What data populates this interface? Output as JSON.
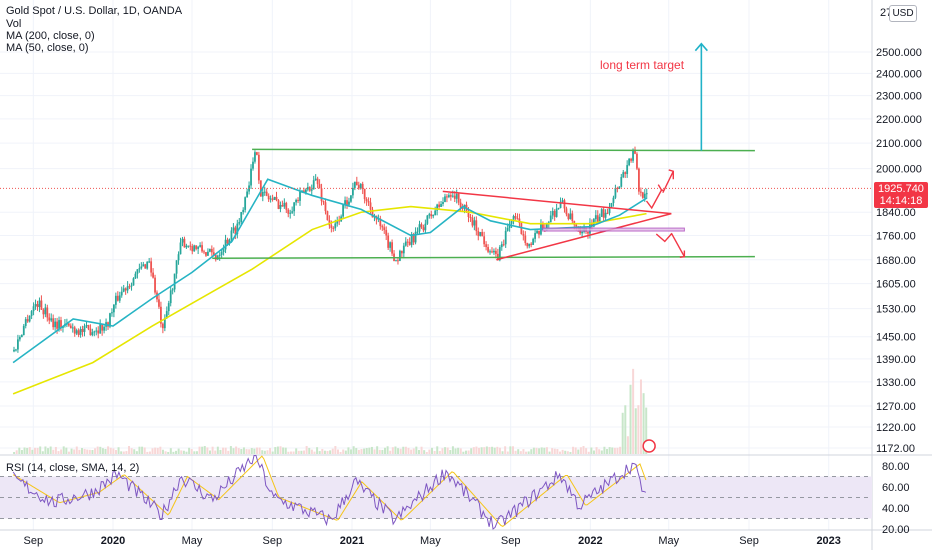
{
  "header": {
    "symbol": "Gold Spot / U.S. Dollar, 1D, OANDA",
    "vol": "Vol",
    "ma200": "MA (200, close, 0)",
    "ma50": "MA (50, close, 0)",
    "currency": "USD",
    "rsi": "RSI (14, close, SMA, 14, 2)"
  },
  "price_tag": {
    "price": "1925.740",
    "countdown": "14:14:18"
  },
  "annotation": "long term target",
  "colors": {
    "up": "#26a69a",
    "down": "#ef5350",
    "ma200": "#e6e600",
    "ma50": "#26b4c4",
    "channel": "#4caf50",
    "triangle": "#f23645",
    "target_arrow": "#20b2c8",
    "rsi_line": "#7e57c2",
    "rsi_band": "#ede7f6"
  },
  "chart_data": [
    {
      "type": "candlestick",
      "title": "Gold Spot / U.S. Dollar, 1D, OANDA",
      "x_ticks": [
        "Sep",
        "2020",
        "May",
        "Sep",
        "2021",
        "May",
        "Sep",
        "2022",
        "May",
        "Sep",
        "2023"
      ],
      "y_ticks": [
        2500,
        2400,
        2300,
        2200,
        2100,
        2000,
        1840,
        1760,
        1680,
        1605,
        1530,
        1450,
        1390,
        1330,
        1270,
        1220,
        1172
      ],
      "y_log": true,
      "last_price": 1925.74,
      "price_path": [
        {
          "date": "2019-08-01",
          "price": 1410
        },
        {
          "date": "2019-08-20",
          "price": 1500
        },
        {
          "date": "2019-09-05",
          "price": 1550
        },
        {
          "date": "2019-10-01",
          "price": 1490
        },
        {
          "date": "2019-11-15",
          "price": 1465
        },
        {
          "date": "2019-12-20",
          "price": 1480
        },
        {
          "date": "2020-01-08",
          "price": 1570
        },
        {
          "date": "2020-02-24",
          "price": 1680
        },
        {
          "date": "2020-03-16",
          "price": 1460
        },
        {
          "date": "2020-04-14",
          "price": 1740
        },
        {
          "date": "2020-06-05",
          "price": 1690
        },
        {
          "date": "2020-07-10",
          "price": 1800
        },
        {
          "date": "2020-08-07",
          "price": 2075
        },
        {
          "date": "2020-08-12",
          "price": 1910
        },
        {
          "date": "2020-09-25",
          "price": 1850
        },
        {
          "date": "2020-11-06",
          "price": 1960
        },
        {
          "date": "2020-11-30",
          "price": 1765
        },
        {
          "date": "2021-01-06",
          "price": 1955
        },
        {
          "date": "2021-03-08",
          "price": 1680
        },
        {
          "date": "2021-06-01",
          "price": 1915
        },
        {
          "date": "2021-08-09",
          "price": 1680
        },
        {
          "date": "2021-09-03",
          "price": 1830
        },
        {
          "date": "2021-09-29",
          "price": 1725
        },
        {
          "date": "2021-11-16",
          "price": 1875
        },
        {
          "date": "2021-12-15",
          "price": 1755
        },
        {
          "date": "2022-01-25",
          "price": 1850
        },
        {
          "date": "2022-03-08",
          "price": 2070
        },
        {
          "date": "2022-03-16",
          "price": 1900
        },
        {
          "date": "2022-03-28",
          "price": 1925.74
        }
      ],
      "ma50": [
        {
          "date": "2019-08-01",
          "price": 1380
        },
        {
          "date": "2019-11-01",
          "price": 1500
        },
        {
          "date": "2020-01-01",
          "price": 1480
        },
        {
          "date": "2020-03-01",
          "price": 1560
        },
        {
          "date": "2020-05-01",
          "price": 1640
        },
        {
          "date": "2020-07-01",
          "price": 1740
        },
        {
          "date": "2020-08-25",
          "price": 1960
        },
        {
          "date": "2020-11-01",
          "price": 1900
        },
        {
          "date": "2021-01-15",
          "price": 1850
        },
        {
          "date": "2021-04-01",
          "price": 1760
        },
        {
          "date": "2021-05-01",
          "price": 1770
        },
        {
          "date": "2021-06-20",
          "price": 1860
        },
        {
          "date": "2021-08-01",
          "price": 1810
        },
        {
          "date": "2021-10-01",
          "price": 1780
        },
        {
          "date": "2022-01-01",
          "price": 1790
        },
        {
          "date": "2022-02-15",
          "price": 1830
        },
        {
          "date": "2022-03-28",
          "price": 1890
        }
      ],
      "ma200": [
        {
          "date": "2019-08-01",
          "price": 1300
        },
        {
          "date": "2019-12-01",
          "price": 1380
        },
        {
          "date": "2020-03-01",
          "price": 1480
        },
        {
          "date": "2020-06-01",
          "price": 1580
        },
        {
          "date": "2020-08-01",
          "price": 1650
        },
        {
          "date": "2020-11-01",
          "price": 1780
        },
        {
          "date": "2021-01-15",
          "price": 1840
        },
        {
          "date": "2021-04-01",
          "price": 1860
        },
        {
          "date": "2021-07-01",
          "price": 1840
        },
        {
          "date": "2021-10-01",
          "price": 1800
        },
        {
          "date": "2022-01-01",
          "price": 1800
        },
        {
          "date": "2022-03-28",
          "price": 1835
        }
      ],
      "drawings": {
        "channel_top": [
          {
            "date": "2020-08-01",
            "price": 2075
          },
          {
            "date": "2022-09-10",
            "price": 2070
          }
        ],
        "channel_bottom": [
          {
            "date": "2020-06-01",
            "price": 1685
          },
          {
            "date": "2022-09-10",
            "price": 1690
          }
        ],
        "triangle_upper": [
          {
            "date": "2021-05-20",
            "price": 1915
          },
          {
            "date": "2022-05-05",
            "price": 1835
          }
        ],
        "triangle_lower": [
          {
            "date": "2021-08-10",
            "price": 1680
          },
          {
            "date": "2022-05-05",
            "price": 1835
          }
        ],
        "support_zone": {
          "from": "2021-10-20",
          "to": "2022-05-25",
          "high": 1785,
          "low": 1775
        },
        "target_arrow": [
          {
            "date": "2022-06-20",
            "price": 2070
          },
          {
            "date": "2022-06-20",
            "price": 2540
          }
        ]
      }
    },
    {
      "type": "line",
      "title": "RSI (14, close, SMA, 14, 2)",
      "y_ticks": [
        80,
        60,
        40,
        20
      ],
      "ylim": [
        20,
        90
      ],
      "bands": [
        70,
        50,
        30
      ],
      "rsi": [
        {
          "date": "2019-08-01",
          "value": 68
        },
        {
          "date": "2019-10-01",
          "value": 45
        },
        {
          "date": "2019-12-01",
          "value": 55
        },
        {
          "date": "2020-01-08",
          "value": 72
        },
        {
          "date": "2020-03-16",
          "value": 33
        },
        {
          "date": "2020-04-14",
          "value": 70
        },
        {
          "date": "2020-06-01",
          "value": 48
        },
        {
          "date": "2020-08-07",
          "value": 90
        },
        {
          "date": "2020-09-01",
          "value": 50
        },
        {
          "date": "2020-11-30",
          "value": 28
        },
        {
          "date": "2021-01-06",
          "value": 65
        },
        {
          "date": "2021-03-08",
          "value": 28
        },
        {
          "date": "2021-05-25",
          "value": 75
        },
        {
          "date": "2021-08-09",
          "value": 22
        },
        {
          "date": "2021-11-16",
          "value": 72
        },
        {
          "date": "2021-12-15",
          "value": 42
        },
        {
          "date": "2022-03-08",
          "value": 82
        },
        {
          "date": "2022-03-28",
          "value": 48
        }
      ]
    }
  ]
}
